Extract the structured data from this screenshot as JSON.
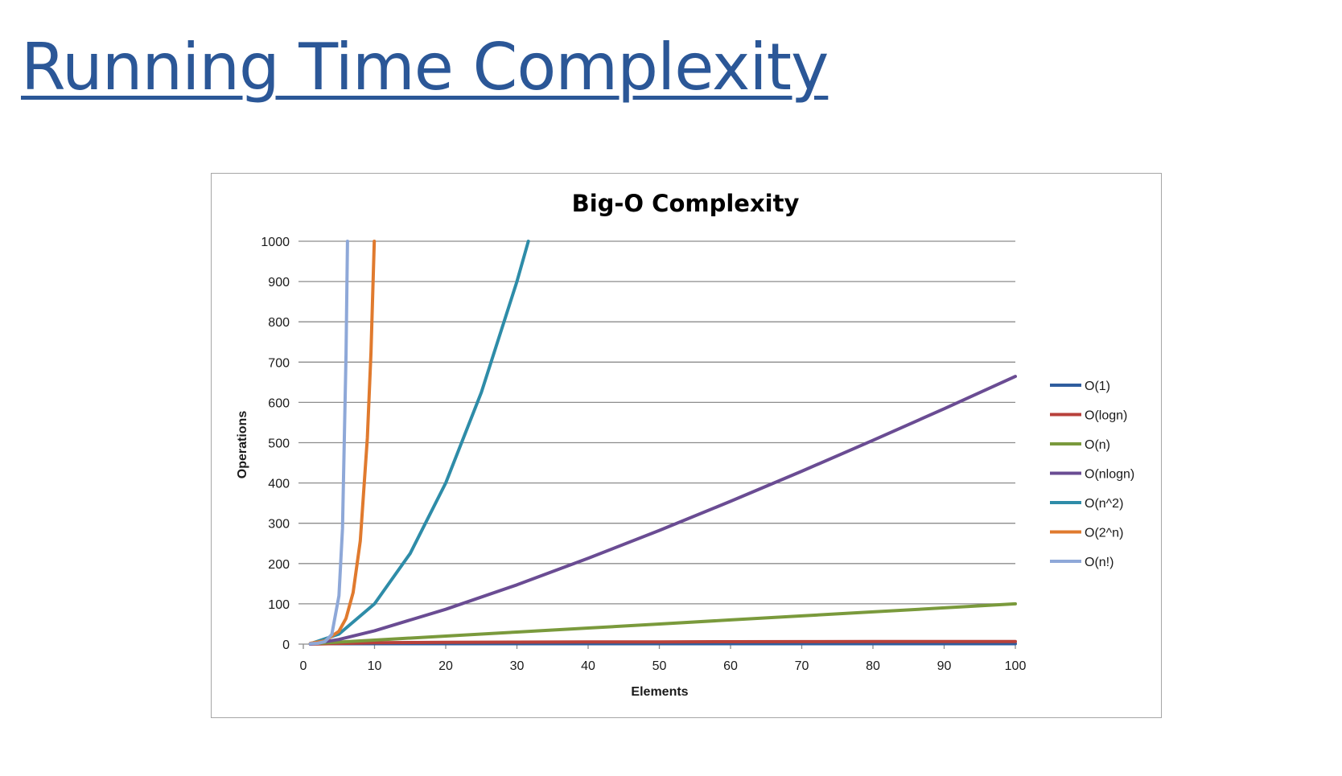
{
  "slide": {
    "title": "Running Time Complexity"
  },
  "chart_data": {
    "type": "line",
    "title": "Big-O Complexity",
    "xlabel": "Elements",
    "ylabel": "Operations",
    "xlim": [
      0,
      100
    ],
    "ylim": [
      0,
      1000
    ],
    "xticks": [
      0,
      10,
      20,
      30,
      40,
      50,
      60,
      70,
      80,
      90,
      100
    ],
    "yticks": [
      0,
      100,
      200,
      300,
      400,
      500,
      600,
      700,
      800,
      900,
      1000
    ],
    "grid": "horizontal",
    "legend_position": "right",
    "series": [
      {
        "name": "O(1)",
        "color": "#2f5d9e",
        "x": [
          1,
          100
        ],
        "y": [
          1,
          1
        ]
      },
      {
        "name": "O(logn)",
        "color": "#b8413b",
        "x": [
          1,
          10,
          20,
          30,
          40,
          50,
          60,
          70,
          80,
          90,
          100
        ],
        "y": [
          0,
          3.3,
          4.3,
          4.9,
          5.3,
          5.6,
          5.9,
          6.1,
          6.3,
          6.5,
          6.6
        ]
      },
      {
        "name": "O(n)",
        "color": "#7a9a3c",
        "x": [
          1,
          10,
          20,
          30,
          40,
          50,
          60,
          70,
          80,
          90,
          100
        ],
        "y": [
          1,
          10,
          20,
          30,
          40,
          50,
          60,
          70,
          80,
          90,
          100
        ]
      },
      {
        "name": "O(nlogn)",
        "color": "#6a4c93",
        "x": [
          1,
          5,
          10,
          20,
          30,
          40,
          50,
          60,
          70,
          80,
          90,
          100
        ],
        "y": [
          0,
          11.6,
          33.2,
          86.4,
          147.2,
          212.9,
          282.2,
          354.4,
          429.1,
          505.8,
          584.3,
          664.4
        ]
      },
      {
        "name": "O(n^2)",
        "color": "#2e8ca8",
        "x": [
          1,
          5,
          10,
          15,
          20,
          25,
          30,
          31.6
        ],
        "y": [
          1,
          25,
          100,
          225,
          400,
          625,
          900,
          1000
        ]
      },
      {
        "name": "O(2^n)",
        "color": "#e07a2e",
        "x": [
          1,
          3,
          5,
          6,
          7,
          8,
          9,
          9.5,
          9.97
        ],
        "y": [
          2,
          8,
          32,
          64,
          128,
          256,
          512,
          724,
          1000
        ]
      },
      {
        "name": "O(n!)",
        "color": "#8ea8d8",
        "x": [
          1,
          2,
          3,
          4,
          5,
          5.5,
          6,
          6.2
        ],
        "y": [
          1,
          2,
          6,
          24,
          120,
          287,
          720,
          1000
        ]
      }
    ]
  }
}
